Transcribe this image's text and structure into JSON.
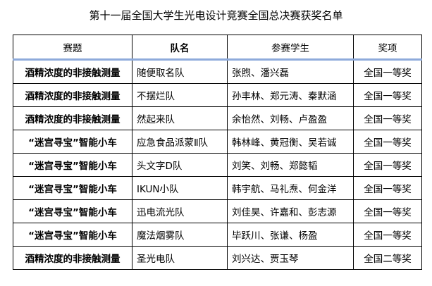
{
  "title": "第十一届全国大学生光电设计竞赛全国总决赛获奖名单",
  "headers": [
    "赛题",
    "队名",
    "参赛学生",
    "奖项"
  ],
  "rows": [
    [
      "酒精浓度的非接触测量",
      "随便取名队",
      "张煦、潘兴磊",
      "全国一等奖"
    ],
    [
      "酒精浓度的非接触测量",
      "不摆烂队",
      "孙丰林、郑元涛、秦默涵",
      "全国一等奖"
    ],
    [
      "酒精浓度的非接触测量",
      "然起来队",
      "余怡然、刘畅、卢盈盈",
      "全国一等奖"
    ],
    [
      "“迷宫寻宝”智能小车",
      "应急食品派蒙Ⅱ队",
      "韩林峰、黄冠衡、吴若诚",
      "全国一等奖"
    ],
    [
      "“迷宫寻宝”智能小车",
      "头文字D队",
      "刘笑、刘畅、郑懿韬",
      "全国一等奖"
    ],
    [
      "“迷宫寻宝”智能小车",
      "IKUN小队",
      "韩宇航、马礼焘、何金洋",
      "全国一等奖"
    ],
    [
      "“迷宫寻宝”智能小车",
      "迅电流光队",
      "刘佳昊、许嘉和、彭志源",
      "全国一等奖"
    ],
    [
      "“迷宫寻宝”智能小车",
      "魔法烟雾队",
      "毕跃川、张谦、杨盈",
      "全国一等奖"
    ],
    [
      "酒精浓度的非接触测量",
      "圣光电队",
      "刘兴达、贾玉琴",
      "全国二等奖"
    ]
  ],
  "colors": {
    "header_rule": "#8eaadb"
  }
}
